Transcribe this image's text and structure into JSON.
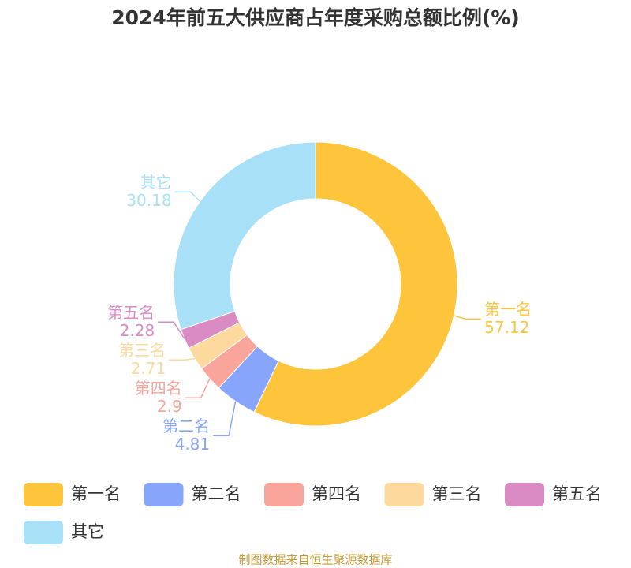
{
  "chart_data": {
    "type": "pie",
    "title": "2024年前五大供应商占年度采购总额比例(%)",
    "categories": [
      "第一名",
      "第二名",
      "第四名",
      "第三名",
      "第五名",
      "其它"
    ],
    "values": [
      57.12,
      4.81,
      2.9,
      2.71,
      2.28,
      30.18
    ],
    "colors": [
      "#fdc43c",
      "#88a5fc",
      "#f9a59b",
      "#fdd99d",
      "#da8bc4",
      "#a8e0f8"
    ],
    "source": "制图数据来自恒生聚源数据库"
  }
}
